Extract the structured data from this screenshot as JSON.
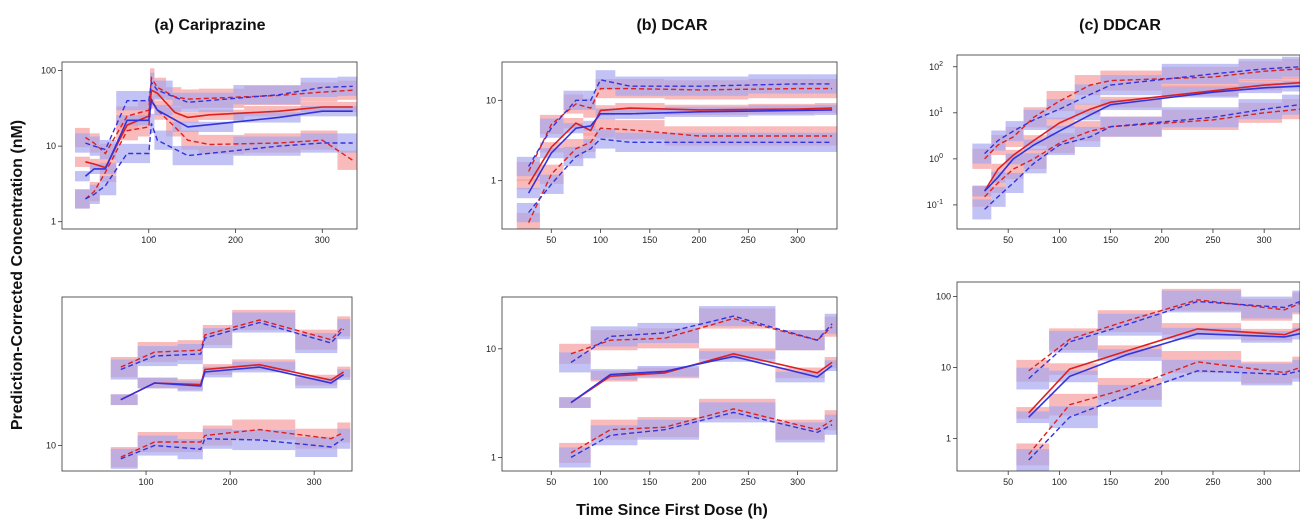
{
  "figure": {
    "ylabel": "Prediction-Corrected Concentration (nM)",
    "xlabel": "Time Since First Dose (h)",
    "colors": {
      "observed": "#dd2020",
      "simulated": "#3333dd",
      "observed_band": "#f5a3a3",
      "simulated_band": "#a8a8f0"
    }
  },
  "chart_data": [
    {
      "id": "cariprazine-top",
      "type": "line",
      "title": "(a) Cariprazine",
      "yscale": "log",
      "xlim": [
        0,
        340
      ],
      "ylim": [
        0.8,
        130
      ],
      "xticks": [
        100,
        200,
        300
      ],
      "yticks": [
        1,
        10,
        100
      ],
      "series": [
        {
          "role": "observed-median",
          "x": [
            27,
            37,
            50,
            75,
            100,
            103,
            110,
            130,
            145,
            170,
            250,
            300,
            335
          ],
          "y": [
            6.2,
            5.8,
            5.2,
            19,
            25,
            55,
            50,
            28,
            24,
            26,
            29,
            33,
            33
          ]
        },
        {
          "role": "observed-upper",
          "x": [
            27,
            37,
            50,
            75,
            100,
            103,
            110,
            130,
            145,
            170,
            250,
            300,
            335
          ],
          "y": [
            13,
            11,
            8,
            25,
            30,
            80,
            60,
            45,
            42,
            43,
            47,
            52,
            55
          ]
        },
        {
          "role": "observed-lower",
          "x": [
            27,
            37,
            50,
            75,
            100,
            103,
            110,
            130,
            145,
            170,
            250,
            300,
            335
          ],
          "y": [
            2,
            2.5,
            4.5,
            16,
            18,
            42,
            30,
            18,
            12,
            10.5,
            11,
            12,
            6.5
          ]
        },
        {
          "role": "simulated-median",
          "x": [
            27,
            37,
            50,
            75,
            100,
            103,
            110,
            145,
            250,
            300,
            335
          ],
          "y": [
            4,
            5,
            5,
            22,
            22,
            40,
            30,
            18,
            24,
            29,
            29
          ]
        },
        {
          "role": "simulated-upper",
          "x": [
            27,
            37,
            50,
            75,
            100,
            103,
            110,
            145,
            250,
            300,
            335
          ],
          "y": [
            11,
            10,
            9,
            40,
            40,
            70,
            55,
            38,
            48,
            60,
            62
          ]
        },
        {
          "role": "simulated-lower",
          "x": [
            27,
            37,
            50,
            75,
            100,
            103,
            110,
            145,
            250,
            300,
            335
          ],
          "y": [
            2,
            2.3,
            3,
            8,
            8,
            20,
            12,
            7.5,
            10,
            11,
            11
          ]
        }
      ]
    },
    {
      "id": "dcar-top",
      "type": "line",
      "title": "(b) DCAR",
      "yscale": "log",
      "xlim": [
        0,
        340
      ],
      "ylim": [
        0.25,
        30
      ],
      "xticks": [
        50,
        100,
        150,
        200,
        250,
        300
      ],
      "yticks": [
        1,
        10
      ],
      "series": [
        {
          "role": "observed-median",
          "x": [
            27,
            50,
            75,
            90,
            100,
            130,
            200,
            300,
            335
          ],
          "y": [
            0.9,
            2.6,
            5.2,
            4.2,
            7.5,
            8,
            7.6,
            7.8,
            8
          ]
        },
        {
          "role": "observed-upper",
          "x": [
            27,
            50,
            75,
            90,
            100,
            130,
            200,
            300,
            335
          ],
          "y": [
            1.3,
            5,
            9,
            8,
            14,
            14,
            13.5,
            14,
            14
          ]
        },
        {
          "role": "observed-lower",
          "x": [
            27,
            50,
            75,
            90,
            100,
            130,
            200,
            300,
            335
          ],
          "y": [
            0.3,
            1.2,
            2.5,
            3,
            4.5,
            4.3,
            3.6,
            3.6,
            3.6
          ]
        },
        {
          "role": "simulated-median",
          "x": [
            27,
            50,
            75,
            90,
            100,
            130,
            200,
            300,
            335
          ],
          "y": [
            0.7,
            2.2,
            4.5,
            4.8,
            6.8,
            6.8,
            7.2,
            7.5,
            7.6
          ]
        },
        {
          "role": "simulated-upper",
          "x": [
            27,
            50,
            75,
            90,
            100,
            130,
            200,
            300,
            335
          ],
          "y": [
            1.5,
            4.5,
            10,
            10,
            18,
            15,
            15,
            16,
            16
          ]
        },
        {
          "role": "simulated-lower",
          "x": [
            27,
            50,
            75,
            90,
            100,
            130,
            200,
            300,
            335
          ],
          "y": [
            0.4,
            0.9,
            2,
            2.5,
            3.3,
            3,
            3,
            3,
            3
          ]
        }
      ]
    },
    {
      "id": "ddcar-top",
      "type": "line",
      "title": "(c) DDCAR",
      "yscale": "log",
      "xlim": [
        0,
        335
      ],
      "ylim": [
        0.03,
        180
      ],
      "xticks": [
        50,
        100,
        150,
        200,
        250,
        300
      ],
      "yticks": [
        0.1,
        1,
        10,
        100
      ],
      "ytick_labels": [
        [
          "10",
          "-1"
        ],
        [
          "10",
          "0"
        ],
        [
          "10",
          "1"
        ],
        [
          "10",
          "2"
        ]
      ],
      "series": [
        {
          "role": "observed-median",
          "x": [
            27,
            40,
            55,
            75,
            100,
            130,
            150,
            250,
            300,
            335
          ],
          "y": [
            0.2,
            0.6,
            1.2,
            2.5,
            6,
            12,
            17,
            30,
            40,
            45
          ]
        },
        {
          "role": "observed-upper",
          "x": [
            27,
            40,
            55,
            75,
            100,
            130,
            150,
            250,
            300,
            335
          ],
          "y": [
            1,
            2,
            3,
            8,
            18,
            40,
            50,
            60,
            80,
            90
          ]
        },
        {
          "role": "observed-lower",
          "x": [
            27,
            40,
            55,
            75,
            100,
            130,
            150,
            250,
            300,
            335
          ],
          "y": [
            0.15,
            0.3,
            0.6,
            1,
            2.2,
            4,
            5,
            7,
            10,
            12
          ]
        },
        {
          "role": "simulated-median",
          "x": [
            27,
            40,
            55,
            75,
            100,
            130,
            150,
            250,
            300,
            335
          ],
          "y": [
            0.2,
            0.4,
            1,
            2,
            4,
            9,
            15,
            28,
            35,
            38
          ]
        },
        {
          "role": "simulated-upper",
          "x": [
            27,
            40,
            55,
            75,
            100,
            130,
            150,
            250,
            300,
            335
          ],
          "y": [
            1.3,
            2.5,
            4,
            7,
            12,
            25,
            40,
            70,
            90,
            100
          ]
        },
        {
          "role": "simulated-lower",
          "x": [
            27,
            40,
            55,
            75,
            100,
            130,
            150,
            250,
            300,
            335
          ],
          "y": [
            0.08,
            0.15,
            0.3,
            0.8,
            2,
            3,
            5,
            8,
            12,
            15
          ]
        }
      ]
    },
    {
      "id": "cariprazine-bottom",
      "type": "line",
      "yscale": "log",
      "xlim": [
        0,
        345
      ],
      "ylim": [
        7,
        80
      ],
      "xticks": [
        100,
        200,
        300
      ],
      "yticks": [
        10
      ],
      "series": [
        {
          "role": "observed-median",
          "x": [
            70,
            110,
            165,
            170,
            235,
            320,
            335
          ],
          "y": [
            19,
            24,
            23.5,
            29,
            31,
            25,
            28
          ]
        },
        {
          "role": "observed-upper",
          "x": [
            70,
            110,
            165,
            170,
            235,
            320,
            335
          ],
          "y": [
            30,
            37,
            38,
            47,
            58,
            44,
            53
          ]
        },
        {
          "role": "observed-lower",
          "x": [
            70,
            110,
            165,
            170,
            235,
            320,
            335
          ],
          "y": [
            8.5,
            10.5,
            10.5,
            11.5,
            12.5,
            11,
            12
          ]
        },
        {
          "role": "simulated-median",
          "x": [
            70,
            110,
            165,
            170,
            235,
            320,
            335
          ],
          "y": [
            19,
            24,
            23,
            28,
            30,
            24,
            27
          ]
        },
        {
          "role": "simulated-upper",
          "x": [
            70,
            110,
            165,
            170,
            235,
            320,
            335
          ],
          "y": [
            29,
            35,
            36,
            45,
            56,
            42,
            51
          ]
        },
        {
          "role": "simulated-lower",
          "x": [
            70,
            110,
            165,
            170,
            235,
            320,
            335
          ],
          "y": [
            8.3,
            10,
            9.5,
            11,
            10.8,
            9.8,
            11
          ]
        }
      ]
    },
    {
      "id": "dcar-bottom",
      "type": "line",
      "yscale": "log",
      "xlim": [
        0,
        340
      ],
      "ylim": [
        0.75,
        30
      ],
      "xticks": [
        50,
        100,
        150,
        200,
        250,
        300
      ],
      "yticks": [
        1,
        10
      ],
      "series": [
        {
          "role": "observed-median",
          "x": [
            70,
            110,
            165,
            235,
            320,
            335
          ],
          "y": [
            3.2,
            5.6,
            6,
            9,
            6,
            7.5
          ]
        },
        {
          "role": "observed-upper",
          "x": [
            70,
            110,
            165,
            235,
            320,
            335
          ],
          "y": [
            9,
            12,
            12.5,
            19,
            12,
            16
          ]
        },
        {
          "role": "observed-lower",
          "x": [
            70,
            110,
            165,
            235,
            320,
            335
          ],
          "y": [
            1.1,
            1.8,
            1.9,
            2.8,
            1.8,
            2.2
          ]
        },
        {
          "role": "simulated-median",
          "x": [
            70,
            110,
            165,
            235,
            320,
            335
          ],
          "y": [
            3.2,
            5.8,
            6.2,
            8.5,
            5.5,
            7
          ]
        },
        {
          "role": "simulated-upper",
          "x": [
            70,
            110,
            165,
            235,
            320,
            335
          ],
          "y": [
            7.5,
            13,
            14,
            20,
            12,
            17
          ]
        },
        {
          "role": "simulated-lower",
          "x": [
            70,
            110,
            165,
            235,
            320,
            335
          ],
          "y": [
            1,
            1.6,
            1.8,
            2.6,
            1.7,
            2
          ]
        }
      ]
    },
    {
      "id": "ddcar-bottom",
      "type": "line",
      "yscale": "log",
      "xlim": [
        0,
        335
      ],
      "ylim": [
        0.35,
        160
      ],
      "xticks": [
        50,
        100,
        150,
        200,
        250,
        300
      ],
      "yticks": [
        1,
        10,
        100
      ],
      "series": [
        {
          "role": "observed-median",
          "x": [
            70,
            110,
            165,
            235,
            320,
            335
          ],
          "y": [
            2.3,
            9.5,
            17,
            35,
            29,
            35
          ]
        },
        {
          "role": "observed-upper",
          "x": [
            70,
            110,
            165,
            235,
            320,
            335
          ],
          "y": [
            9,
            25,
            45,
            90,
            65,
            80
          ]
        },
        {
          "role": "observed-lower",
          "x": [
            70,
            110,
            165,
            235,
            320,
            335
          ],
          "y": [
            0.6,
            3,
            5,
            12,
            8.5,
            10
          ]
        },
        {
          "role": "simulated-median",
          "x": [
            70,
            110,
            165,
            235,
            320,
            335
          ],
          "y": [
            2,
            7.5,
            15,
            30,
            27,
            30
          ]
        },
        {
          "role": "simulated-upper",
          "x": [
            70,
            110,
            165,
            235,
            320,
            335
          ],
          "y": [
            7,
            23,
            40,
            85,
            70,
            85
          ]
        },
        {
          "role": "simulated-lower",
          "x": [
            70,
            110,
            165,
            235,
            320,
            335
          ],
          "y": [
            0.5,
            2,
            4,
            9,
            8,
            9
          ]
        }
      ]
    }
  ]
}
